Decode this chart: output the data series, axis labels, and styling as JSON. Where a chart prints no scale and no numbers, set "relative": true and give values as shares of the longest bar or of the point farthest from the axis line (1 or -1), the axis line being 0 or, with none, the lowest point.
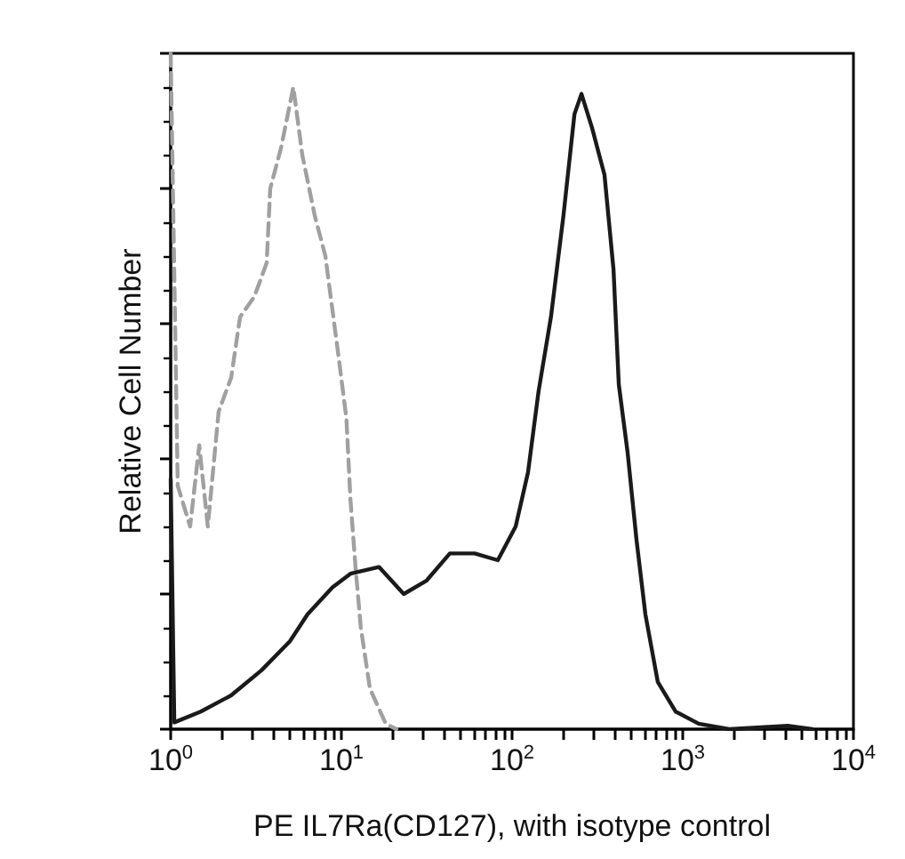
{
  "chart_data": {
    "type": "line",
    "relative": true,
    "log": "x",
    "grid": false,
    "tick_labels": "x",
    "marker": "none",
    "xlabel": "PE IL7Ra(CD127), with isotype control",
    "ylabel": "Relative Cell Number",
    "xlim": [
      1,
      10000
    ],
    "xticks": [
      {
        "value": 1,
        "label": "10$^{0}$"
      },
      {
        "value": 2,
        "label": null
      },
      {
        "value": 3,
        "label": null
      },
      {
        "value": 4,
        "label": null
      },
      {
        "value": 5,
        "label": null
      },
      {
        "value": 6,
        "label": null
      },
      {
        "value": 7,
        "label": null
      },
      {
        "value": 8,
        "label": null
      },
      {
        "value": 9,
        "label": null
      },
      {
        "value": 10,
        "label": "10$^{1}$"
      },
      {
        "value": 20,
        "label": null
      },
      {
        "value": 30,
        "label": null
      },
      {
        "value": 40,
        "label": null
      },
      {
        "value": 50,
        "label": null
      },
      {
        "value": 60,
        "label": null
      },
      {
        "value": 70,
        "label": null
      },
      {
        "value": 80,
        "label": null
      },
      {
        "value": 90,
        "label": null
      },
      {
        "value": 100,
        "label": "10$^{2}$"
      },
      {
        "value": 200,
        "label": null
      },
      {
        "value": 300,
        "label": null
      },
      {
        "value": 400,
        "label": null
      },
      {
        "value": 500,
        "label": null
      },
      {
        "value": 600,
        "label": null
      },
      {
        "value": 700,
        "label": null
      },
      {
        "value": 800,
        "label": null
      },
      {
        "value": 900,
        "label": null
      },
      {
        "value": 1000,
        "label": "10$^{3}$"
      },
      {
        "value": 2000,
        "label": null
      },
      {
        "value": 3000,
        "label": null
      },
      {
        "value": 4000,
        "label": null
      },
      {
        "value": 5000,
        "label": null
      },
      {
        "value": 6000,
        "label": null
      },
      {
        "value": 7000,
        "label": null
      },
      {
        "value": 8000,
        "label": null
      },
      {
        "value": 9000,
        "label": null
      },
      {
        "value": 10000,
        "label": "10$^{4}$"
      }
    ],
    "series": [
      {
        "color": "#a0a0a0",
        "line_style": "dashed",
        "x": [
          1,
          1.1,
          1.3,
          1.47,
          1.65,
          1.91,
          2.26,
          2.55,
          3.09,
          3.65,
          3.83,
          4.43,
          5.23,
          5.9,
          6.98,
          8.06,
          8.45,
          9.53,
          10.7,
          11.3,
          12.1,
          13,
          14.7,
          18.2,
          21
        ],
        "values": [
          1,
          0.36,
          0.3,
          0.42,
          0.3,
          0.47,
          0.52,
          0.61,
          0.64,
          0.69,
          0.8,
          0.86,
          0.95,
          0.85,
          0.76,
          0.7,
          0.66,
          0.56,
          0.46,
          0.34,
          0.24,
          0.15,
          0.06,
          0.008,
          0
        ]
      },
      {
        "color": "#1a1a1a",
        "line_style": "solid",
        "x": [
          1,
          1.05,
          1.5,
          2.26,
          3.4,
          4.99,
          6.34,
          8.87,
          11.3,
          16.6,
          23.2,
          31.6,
          43.2,
          60.4,
          82.5,
          105,
          124,
          143,
          169,
          200,
          232,
          255,
          294,
          348,
          393,
          422,
          475,
          536,
          604,
          714,
          908,
          1240,
          1870,
          4120,
          5750
        ],
        "values": [
          0.37,
          0.01,
          0.026,
          0.05,
          0.087,
          0.13,
          0.17,
          0.21,
          0.23,
          0.24,
          0.2,
          0.22,
          0.26,
          0.26,
          0.25,
          0.3,
          0.38,
          0.5,
          0.61,
          0.76,
          0.91,
          0.94,
          0.89,
          0.82,
          0.68,
          0.51,
          0.41,
          0.28,
          0.17,
          0.07,
          0.026,
          0.008,
          0,
          0.005,
          0
        ]
      }
    ]
  }
}
